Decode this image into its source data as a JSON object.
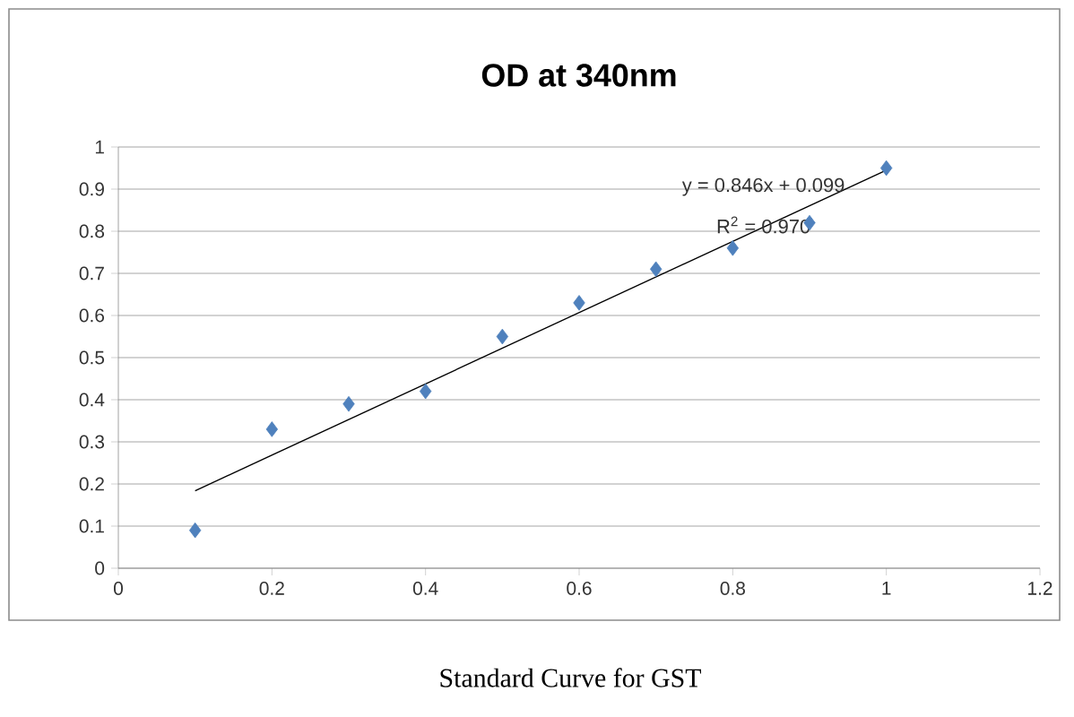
{
  "chart_data": {
    "type": "scatter",
    "title": "OD at 340nm",
    "x": [
      0.1,
      0.2,
      0.3,
      0.4,
      0.5,
      0.6,
      0.7,
      0.8,
      0.9,
      1.0
    ],
    "series": [
      {
        "color": "#4f81bd",
        "marker": "diamond",
        "values": [
          0.09,
          0.33,
          0.39,
          0.42,
          0.55,
          0.63,
          0.71,
          0.76,
          0.82,
          0.95
        ]
      },
      {
        "type": "line",
        "color": "#000000",
        "marker": "none",
        "x": [
          0.1,
          1.0
        ],
        "values": [
          0.184,
          0.945
        ]
      }
    ],
    "xlim": [
      0,
      1.2
    ],
    "ylim": [
      0,
      1
    ],
    "xticks": [
      0,
      0.2,
      0.4,
      0.6,
      0.8,
      1,
      1.2
    ],
    "yticks": [
      0,
      0.1,
      0.2,
      0.3,
      0.4,
      0.5,
      0.6,
      0.7,
      0.8,
      0.9,
      1
    ],
    "grid": "y",
    "annotations": [
      "y = 0.846x + 0.099",
      "R$^{2}$ = 0.970",
      "Standard Curve for GST"
    ]
  }
}
